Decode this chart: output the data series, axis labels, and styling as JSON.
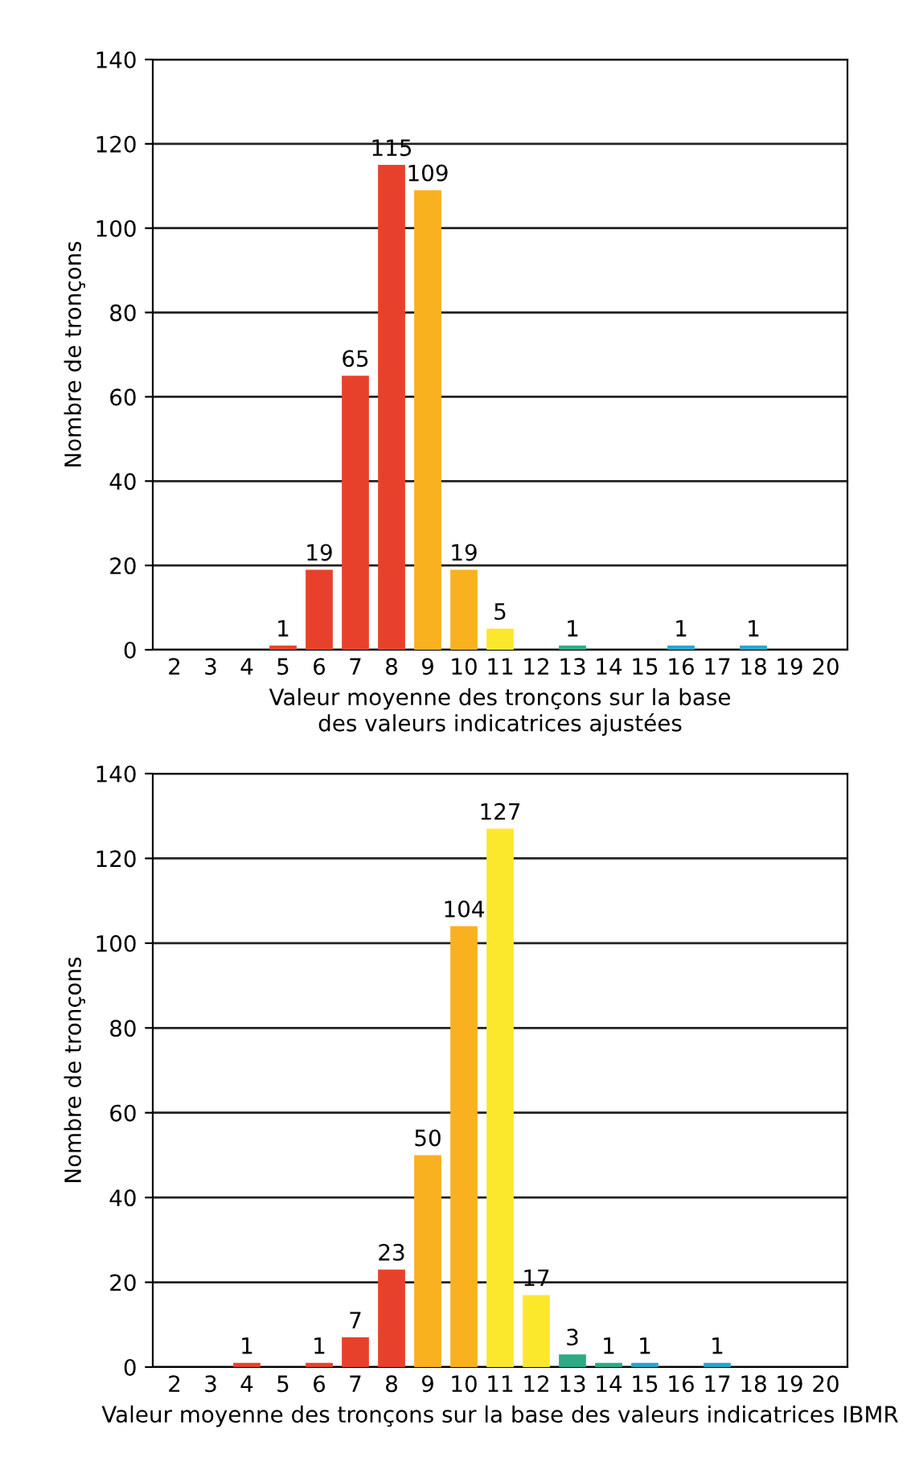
{
  "chart_data": [
    {
      "type": "bar",
      "xlabel": "Valeur moyenne des tronçons sur la base\ndes valeurs indicatrices ajustées",
      "ylabel": "Nombre de tronçons",
      "categories": [
        "2",
        "3",
        "4",
        "5",
        "6",
        "7",
        "8",
        "9",
        "10",
        "11",
        "12",
        "13",
        "14",
        "15",
        "16",
        "17",
        "18",
        "19",
        "20"
      ],
      "values": [
        0,
        0,
        0,
        1,
        19,
        65,
        115,
        109,
        19,
        5,
        0,
        1,
        0,
        0,
        1,
        0,
        1,
        0,
        0
      ],
      "value_labels": [
        null,
        null,
        null,
        "1",
        "19",
        "65",
        "115",
        "109",
        "19",
        "5",
        null,
        "1",
        null,
        null,
        "1",
        null,
        "1",
        null,
        null
      ],
      "colors": [
        "#e8412b",
        "#e8412b",
        "#e8412b",
        "#e8412b",
        "#e8412b",
        "#e8412b",
        "#e8412b",
        "#f9b120",
        "#f9b120",
        "#fbe82c",
        "#fbe82c",
        "#2eab84",
        "#2eab84",
        "#28a5cf",
        "#28a5cf",
        "#28a5cf",
        "#28a5cf",
        "#28a5cf",
        "#28a5cf"
      ],
      "ylim": [
        0,
        140
      ],
      "yticks": [
        0,
        20,
        40,
        60,
        80,
        100,
        120,
        140
      ],
      "grid": "y"
    },
    {
      "type": "bar",
      "xlabel": "Valeur moyenne des tronçons sur la base des valeurs indicatrices IBMR",
      "ylabel": "Nombre de tronçons",
      "categories": [
        "2",
        "3",
        "4",
        "5",
        "6",
        "7",
        "8",
        "9",
        "10",
        "11",
        "12",
        "13",
        "14",
        "15",
        "16",
        "17",
        "18",
        "19",
        "20"
      ],
      "values": [
        0,
        0,
        1,
        0,
        1,
        7,
        23,
        50,
        104,
        127,
        17,
        3,
        1,
        1,
        0,
        1,
        0,
        0,
        0
      ],
      "value_labels": [
        null,
        null,
        "1",
        null,
        "1",
        "7",
        "23",
        "50",
        "104",
        "127",
        "17",
        "3",
        "1",
        "1",
        null,
        "1",
        null,
        null,
        null
      ],
      "colors": [
        "#e8412b",
        "#e8412b",
        "#e8412b",
        "#e8412b",
        "#e8412b",
        "#e8412b",
        "#e8412b",
        "#f9b120",
        "#f9b120",
        "#fbe82c",
        "#fbe82c",
        "#2eab84",
        "#2eab84",
        "#28a5cf",
        "#28a5cf",
        "#28a5cf",
        "#28a5cf",
        "#28a5cf",
        "#28a5cf"
      ],
      "ylim": [
        0,
        140
      ],
      "yticks": [
        0,
        20,
        40,
        60,
        80,
        100,
        120,
        140
      ],
      "grid": "y"
    }
  ]
}
